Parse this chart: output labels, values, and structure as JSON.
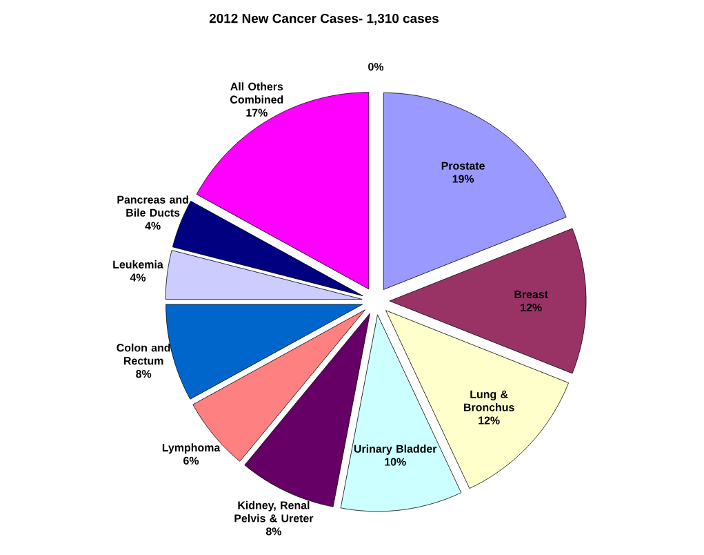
{
  "chart_data": {
    "type": "pie",
    "title": "2012 New Cancer Cases- 1,310 cases",
    "categories": [
      null,
      "Prostate",
      "Breast",
      "Lung & Bronchus",
      "Urinary Bladder",
      "Kidney, Renal Pelvis & Ureter",
      "Lymphoma",
      "Colon and Rectum",
      "Leukemia",
      "Pancreas and Bile Ducts",
      "All Others Combined"
    ],
    "values": [
      0,
      19,
      12,
      12,
      10,
      8,
      6,
      8,
      4,
      4,
      17
    ],
    "value_labels": [
      "0%",
      "19%",
      "12%",
      "12%",
      "10%",
      "8%",
      "6%",
      "8%",
      "4%",
      "4%",
      "17%"
    ],
    "colors": [
      "#ffffff",
      "#9999ff",
      "#993366",
      "#ffffcc",
      "#ccffff",
      "#660066",
      "#ff8080",
      "#0066cc",
      "#ccccff",
      "#000080",
      "#ff00ff"
    ]
  }
}
